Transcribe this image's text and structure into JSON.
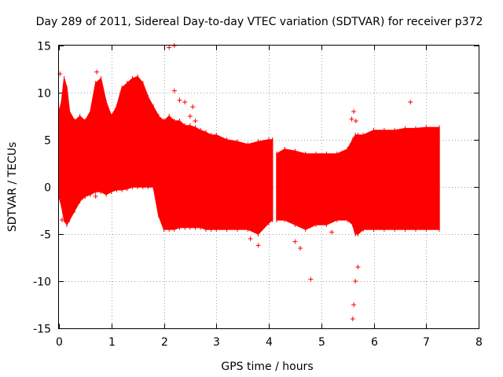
{
  "chart_data": {
    "type": "scatter",
    "title": "Day 289 of 2011, Sidereal Day-to-day VTEC variation (SDTVAR) for receiver p372",
    "xlabel": "GPS time / hours",
    "ylabel": "SDTVAR / TECUs",
    "xlim": [
      0,
      8
    ],
    "ylim": [
      -15,
      15
    ],
    "x_ticks": [
      0,
      1,
      2,
      3,
      4,
      5,
      6,
      7,
      8
    ],
    "x_tick_labels": [
      "0",
      "1",
      "2",
      "3",
      "4",
      "5",
      "6",
      "7",
      "8"
    ],
    "y_ticks": [
      -15,
      -10,
      -5,
      0,
      5,
      10,
      15
    ],
    "y_tick_labels": [
      "-15",
      "-10",
      "-5",
      "0",
      "5",
      "10",
      "15"
    ],
    "grid": true,
    "marker": "+",
    "color": "#ff0000",
    "series": [
      {
        "name": "SDTVAR",
        "envelope": {
          "x": [
            0.0,
            0.05,
            0.1,
            0.15,
            0.2,
            0.3,
            0.4,
            0.5,
            0.6,
            0.7,
            0.8,
            0.9,
            1.0,
            1.1,
            1.2,
            1.3,
            1.4,
            1.5,
            1.6,
            1.7,
            1.8,
            1.9,
            2.0,
            2.1,
            2.2,
            2.3,
            2.4,
            2.5,
            2.6,
            2.7,
            2.8,
            2.9,
            3.0,
            3.2,
            3.4,
            3.6,
            3.8,
            4.0,
            4.07
          ],
          "upper": [
            8.0,
            9.0,
            11.5,
            10.5,
            8.0,
            7.0,
            7.5,
            7.0,
            8.0,
            11.0,
            11.5,
            9.0,
            7.5,
            8.5,
            10.5,
            11.0,
            11.5,
            11.7,
            11.0,
            9.5,
            8.5,
            7.5,
            7.0,
            7.5,
            7.0,
            7.0,
            6.5,
            6.5,
            6.3,
            6.0,
            5.8,
            5.5,
            5.5,
            5.0,
            4.8,
            4.5,
            4.8,
            5.0,
            5.0
          ],
          "lower": [
            -1.0,
            -2.0,
            -3.5,
            -4.0,
            -3.5,
            -2.5,
            -1.5,
            -1.0,
            -0.8,
            -0.5,
            -0.5,
            -0.8,
            -0.5,
            -0.3,
            -0.3,
            -0.2,
            0.0,
            0.0,
            0.0,
            0.0,
            0.0,
            -3.0,
            -4.5,
            -4.5,
            -4.5,
            -4.3,
            -4.3,
            -4.3,
            -4.3,
            -4.3,
            -4.5,
            -4.5,
            -4.5,
            -4.5,
            -4.5,
            -4.5,
            -5.0,
            -3.8,
            -3.5
          ]
        },
        "envelope2": {
          "x": [
            4.15,
            4.3,
            4.5,
            4.7,
            4.9,
            5.1,
            5.3,
            5.5,
            5.6,
            5.65,
            5.7,
            5.8,
            6.0,
            6.2,
            6.4,
            6.6,
            6.8,
            7.0,
            7.25
          ],
          "upper": [
            3.5,
            4.0,
            3.8,
            3.5,
            3.5,
            3.5,
            3.5,
            4.0,
            5.0,
            5.5,
            5.5,
            5.5,
            6.0,
            6.0,
            6.0,
            6.2,
            6.2,
            6.3,
            6.3
          ],
          "lower": [
            -3.5,
            -3.5,
            -4.0,
            -4.5,
            -4.0,
            -4.0,
            -3.5,
            -3.5,
            -4.0,
            -5.0,
            -5.0,
            -4.5,
            -4.5,
            -4.5,
            -4.5,
            -4.5,
            -4.5,
            -4.5,
            -4.5
          ]
        },
        "outliers": [
          {
            "x": 0.02,
            "y": 12.0
          },
          {
            "x": 0.04,
            "y": 8.2
          },
          {
            "x": 0.06,
            "y": -3.5
          },
          {
            "x": 0.7,
            "y": -1.0
          },
          {
            "x": 0.72,
            "y": 12.2
          },
          {
            "x": 1.15,
            "y": 0.2
          },
          {
            "x": 2.1,
            "y": 14.8
          },
          {
            "x": 2.2,
            "y": 15.0
          },
          {
            "x": 2.2,
            "y": 10.2
          },
          {
            "x": 2.3,
            "y": 9.2
          },
          {
            "x": 2.4,
            "y": 9.0
          },
          {
            "x": 2.5,
            "y": 7.5
          },
          {
            "x": 2.55,
            "y": 8.5
          },
          {
            "x": 2.6,
            "y": 7.0
          },
          {
            "x": 3.65,
            "y": -5.5
          },
          {
            "x": 3.8,
            "y": -6.2
          },
          {
            "x": 4.5,
            "y": -5.8
          },
          {
            "x": 4.6,
            "y": -6.5
          },
          {
            "x": 4.8,
            "y": -9.8
          },
          {
            "x": 4.2,
            "y": 1.5
          },
          {
            "x": 5.6,
            "y": -14.0
          },
          {
            "x": 5.62,
            "y": -12.5
          },
          {
            "x": 5.65,
            "y": -10.0
          },
          {
            "x": 5.7,
            "y": -8.5
          },
          {
            "x": 5.58,
            "y": 7.2
          },
          {
            "x": 5.62,
            "y": 8.0
          },
          {
            "x": 5.66,
            "y": 7.0
          },
          {
            "x": 6.7,
            "y": 9.0
          },
          {
            "x": 3.5,
            "y": 0.0
          },
          {
            "x": 5.2,
            "y": -4.8
          }
        ]
      }
    ]
  }
}
